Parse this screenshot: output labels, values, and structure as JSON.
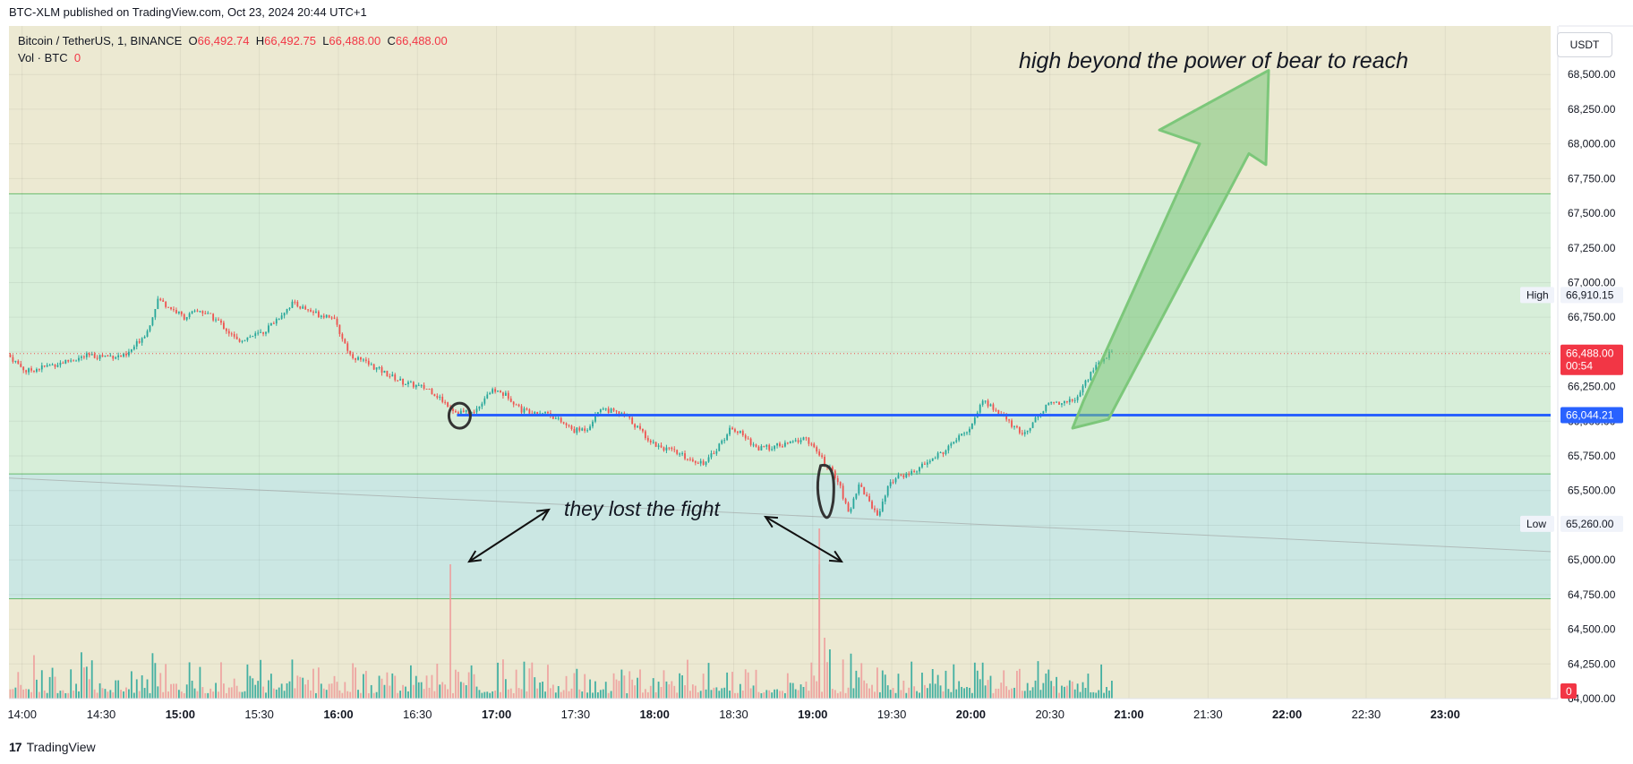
{
  "header": {
    "published": "BTC-XLM published on TradingView.com, Oct 23, 2024 20:44 UTC+1"
  },
  "legend": {
    "symbol": "Bitcoin / TetherUS, 1, BINANCE",
    "o_label": "O",
    "o_value": "66,492.74",
    "h_label": "H",
    "h_value": "66,492.75",
    "l_label": "L",
    "l_value": "66,488.00",
    "c_label": "C",
    "c_value": "66,488.00",
    "vol_label": "Vol · BTC",
    "vol_value": "0"
  },
  "currency": "USDT",
  "footer": {
    "brand": "TradingView"
  },
  "colors": {
    "up": "#26a69a",
    "down": "#ef5350",
    "hline": "#2962ff",
    "zone_green": "#d7eed9",
    "zone_teal": "#cbe7e3",
    "zone_beige": "#ece9d2",
    "arrow": "#7cc77a"
  },
  "chart_data": {
    "type": "candlestick",
    "ylim": [
      64000,
      68850
    ],
    "xlim": [
      "13:55",
      "23:40"
    ],
    "y_ticks": [
      "64,000.00",
      "64,250.00",
      "64,500.00",
      "64,750.00",
      "65,000.00",
      "65,250.00",
      "65,500.00",
      "65,750.00",
      "66,000.00",
      "66,250.00",
      "66,500.00",
      "66,750.00",
      "67,000.00",
      "67,250.00",
      "67,500.00",
      "67,750.00",
      "68,000.00",
      "68,250.00",
      "68,500.00"
    ],
    "x_ticks": [
      "14:00",
      "14:30",
      "15:00",
      "15:30",
      "16:00",
      "16:30",
      "17:00",
      "17:30",
      "18:00",
      "18:30",
      "19:00",
      "19:30",
      "20:00",
      "20:30",
      "21:00",
      "21:30",
      "22:00",
      "22:30",
      "23:00"
    ],
    "bold_x_ticks": [
      "15:00",
      "16:00",
      "17:00",
      "18:00",
      "19:00",
      "20:00",
      "21:00",
      "22:00",
      "23:00"
    ],
    "price_path": [
      [
        "13:55",
        66480
      ],
      [
        "14:02",
        66360
      ],
      [
        "14:15",
        66420
      ],
      [
        "14:25",
        66470
      ],
      [
        "14:40",
        66470
      ],
      [
        "14:48",
        66650
      ],
      [
        "14:52",
        66880
      ],
      [
        "15:02",
        66750
      ],
      [
        "15:08",
        66800
      ],
      [
        "15:15",
        66720
      ],
      [
        "15:22",
        66580
      ],
      [
        "15:32",
        66640
      ],
      [
        "15:43",
        66850
      ],
      [
        "15:53",
        66770
      ],
      [
        "15:58",
        66760
      ],
      [
        "16:05",
        66480
      ],
      [
        "16:15",
        66380
      ],
      [
        "16:25",
        66280
      ],
      [
        "16:35",
        66230
      ],
      [
        "16:45",
        66070
      ],
      [
        "16:52",
        66060
      ],
      [
        "16:57",
        66200
      ],
      [
        "17:00",
        66220
      ],
      [
        "17:05",
        66180
      ],
      [
        "17:10",
        66080
      ],
      [
        "17:20",
        66060
      ],
      [
        "17:30",
        65930
      ],
      [
        "17:35",
        65950
      ],
      [
        "17:40",
        66100
      ],
      [
        "17:50",
        66030
      ],
      [
        "18:00",
        65840
      ],
      [
        "18:15",
        65720
      ],
      [
        "18:20",
        65700
      ],
      [
        "18:30",
        65960
      ],
      [
        "18:40",
        65800
      ],
      [
        "18:50",
        65830
      ],
      [
        "18:58",
        65880
      ],
      [
        "19:05",
        65700
      ],
      [
        "19:10",
        65580
      ],
      [
        "19:14",
        65330
      ],
      [
        "19:18",
        65550
      ],
      [
        "19:25",
        65320
      ],
      [
        "19:30",
        65570
      ],
      [
        "19:40",
        65650
      ],
      [
        "19:50",
        65780
      ],
      [
        "20:00",
        65950
      ],
      [
        "20:05",
        66150
      ],
      [
        "20:12",
        66050
      ],
      [
        "20:20",
        65900
      ],
      [
        "20:30",
        66130
      ],
      [
        "20:40",
        66150
      ],
      [
        "20:47",
        66380
      ],
      [
        "20:53",
        66488
      ]
    ],
    "volume_spikes": [
      {
        "time": "16:42",
        "vol": "high"
      },
      {
        "time": "19:02",
        "vol": "high"
      }
    ],
    "levels": [
      {
        "name": "blue-support",
        "value": 66044.21,
        "color": "#2962ff"
      },
      {
        "name": "zone-top",
        "value": 67640
      },
      {
        "name": "zone-mid",
        "value": 65620
      },
      {
        "name": "zone-bottom",
        "value": 64720
      }
    ],
    "price_labels": [
      {
        "name": "high",
        "label": "High",
        "value": "66,910.15",
        "price": 66910.15
      },
      {
        "name": "current",
        "label": "",
        "value": "66,488.00",
        "price": 66488,
        "countdown": "00:54"
      },
      {
        "name": "level",
        "label": "",
        "value": "66,044.21",
        "price": 66044.21
      },
      {
        "name": "low",
        "label": "Low",
        "value": "65,260.00",
        "price": 65260
      }
    ],
    "volume_label": "0",
    "annotations": [
      {
        "name": "top-annotation",
        "text": "high beyond the power of bear to reach"
      },
      {
        "name": "middle-annotation",
        "text": "they lost the fight"
      }
    ]
  }
}
